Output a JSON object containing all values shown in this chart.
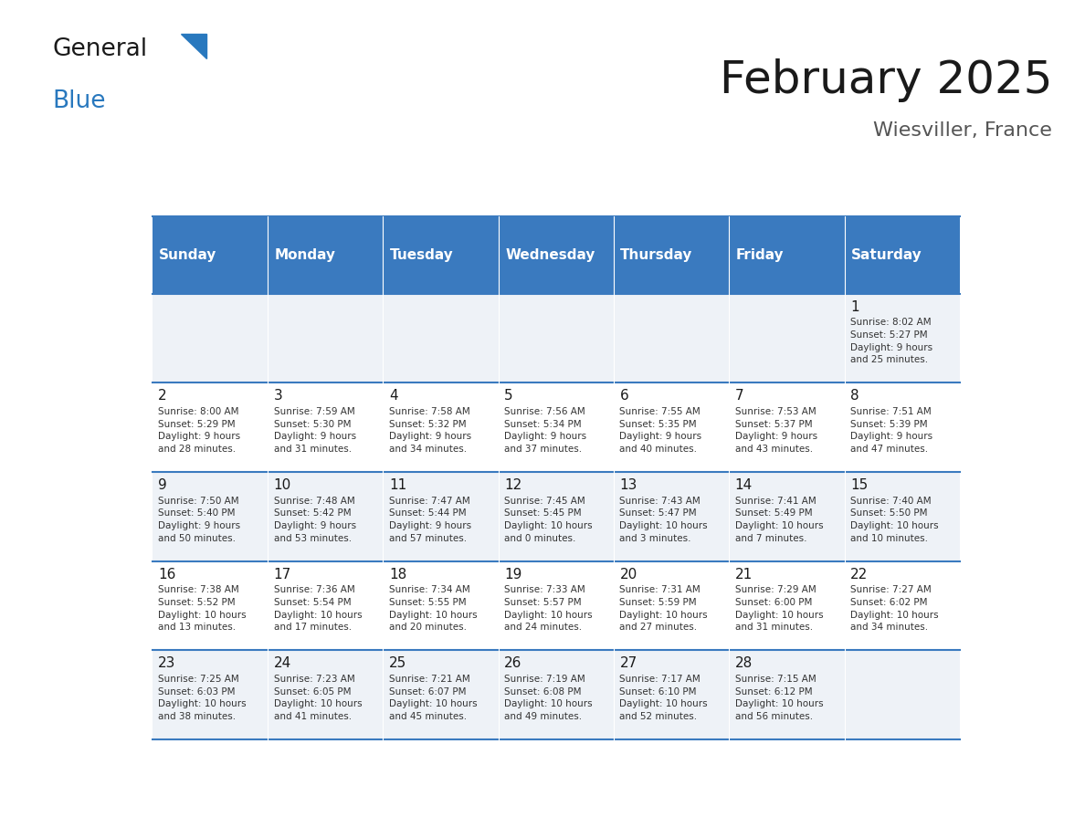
{
  "title": "February 2025",
  "subtitle": "Wiesviller, France",
  "header_color": "#3a7abf",
  "header_text_color": "#ffffff",
  "days_of_week": [
    "Sunday",
    "Monday",
    "Tuesday",
    "Wednesday",
    "Thursday",
    "Friday",
    "Saturday"
  ],
  "cell_bg_even": "#eef2f7",
  "cell_bg_odd": "#ffffff",
  "border_color": "#3a7abf",
  "text_color": "#333333",
  "day_num_color": "#1a1a1a",
  "calendar": [
    [
      {
        "day": "",
        "info": ""
      },
      {
        "day": "",
        "info": ""
      },
      {
        "day": "",
        "info": ""
      },
      {
        "day": "",
        "info": ""
      },
      {
        "day": "",
        "info": ""
      },
      {
        "day": "",
        "info": ""
      },
      {
        "day": "1",
        "info": "Sunrise: 8:02 AM\nSunset: 5:27 PM\nDaylight: 9 hours\nand 25 minutes."
      }
    ],
    [
      {
        "day": "2",
        "info": "Sunrise: 8:00 AM\nSunset: 5:29 PM\nDaylight: 9 hours\nand 28 minutes."
      },
      {
        "day": "3",
        "info": "Sunrise: 7:59 AM\nSunset: 5:30 PM\nDaylight: 9 hours\nand 31 minutes."
      },
      {
        "day": "4",
        "info": "Sunrise: 7:58 AM\nSunset: 5:32 PM\nDaylight: 9 hours\nand 34 minutes."
      },
      {
        "day": "5",
        "info": "Sunrise: 7:56 AM\nSunset: 5:34 PM\nDaylight: 9 hours\nand 37 minutes."
      },
      {
        "day": "6",
        "info": "Sunrise: 7:55 AM\nSunset: 5:35 PM\nDaylight: 9 hours\nand 40 minutes."
      },
      {
        "day": "7",
        "info": "Sunrise: 7:53 AM\nSunset: 5:37 PM\nDaylight: 9 hours\nand 43 minutes."
      },
      {
        "day": "8",
        "info": "Sunrise: 7:51 AM\nSunset: 5:39 PM\nDaylight: 9 hours\nand 47 minutes."
      }
    ],
    [
      {
        "day": "9",
        "info": "Sunrise: 7:50 AM\nSunset: 5:40 PM\nDaylight: 9 hours\nand 50 minutes."
      },
      {
        "day": "10",
        "info": "Sunrise: 7:48 AM\nSunset: 5:42 PM\nDaylight: 9 hours\nand 53 minutes."
      },
      {
        "day": "11",
        "info": "Sunrise: 7:47 AM\nSunset: 5:44 PM\nDaylight: 9 hours\nand 57 minutes."
      },
      {
        "day": "12",
        "info": "Sunrise: 7:45 AM\nSunset: 5:45 PM\nDaylight: 10 hours\nand 0 minutes."
      },
      {
        "day": "13",
        "info": "Sunrise: 7:43 AM\nSunset: 5:47 PM\nDaylight: 10 hours\nand 3 minutes."
      },
      {
        "day": "14",
        "info": "Sunrise: 7:41 AM\nSunset: 5:49 PM\nDaylight: 10 hours\nand 7 minutes."
      },
      {
        "day": "15",
        "info": "Sunrise: 7:40 AM\nSunset: 5:50 PM\nDaylight: 10 hours\nand 10 minutes."
      }
    ],
    [
      {
        "day": "16",
        "info": "Sunrise: 7:38 AM\nSunset: 5:52 PM\nDaylight: 10 hours\nand 13 minutes."
      },
      {
        "day": "17",
        "info": "Sunrise: 7:36 AM\nSunset: 5:54 PM\nDaylight: 10 hours\nand 17 minutes."
      },
      {
        "day": "18",
        "info": "Sunrise: 7:34 AM\nSunset: 5:55 PM\nDaylight: 10 hours\nand 20 minutes."
      },
      {
        "day": "19",
        "info": "Sunrise: 7:33 AM\nSunset: 5:57 PM\nDaylight: 10 hours\nand 24 minutes."
      },
      {
        "day": "20",
        "info": "Sunrise: 7:31 AM\nSunset: 5:59 PM\nDaylight: 10 hours\nand 27 minutes."
      },
      {
        "day": "21",
        "info": "Sunrise: 7:29 AM\nSunset: 6:00 PM\nDaylight: 10 hours\nand 31 minutes."
      },
      {
        "day": "22",
        "info": "Sunrise: 7:27 AM\nSunset: 6:02 PM\nDaylight: 10 hours\nand 34 minutes."
      }
    ],
    [
      {
        "day": "23",
        "info": "Sunrise: 7:25 AM\nSunset: 6:03 PM\nDaylight: 10 hours\nand 38 minutes."
      },
      {
        "day": "24",
        "info": "Sunrise: 7:23 AM\nSunset: 6:05 PM\nDaylight: 10 hours\nand 41 minutes."
      },
      {
        "day": "25",
        "info": "Sunrise: 7:21 AM\nSunset: 6:07 PM\nDaylight: 10 hours\nand 45 minutes."
      },
      {
        "day": "26",
        "info": "Sunrise: 7:19 AM\nSunset: 6:08 PM\nDaylight: 10 hours\nand 49 minutes."
      },
      {
        "day": "27",
        "info": "Sunrise: 7:17 AM\nSunset: 6:10 PM\nDaylight: 10 hours\nand 52 minutes."
      },
      {
        "day": "28",
        "info": "Sunrise: 7:15 AM\nSunset: 6:12 PM\nDaylight: 10 hours\nand 56 minutes."
      },
      {
        "day": "",
        "info": ""
      }
    ]
  ],
  "logo_general_color": "#1a1a1a",
  "logo_blue_color": "#2878be",
  "logo_triangle_color": "#2878be"
}
